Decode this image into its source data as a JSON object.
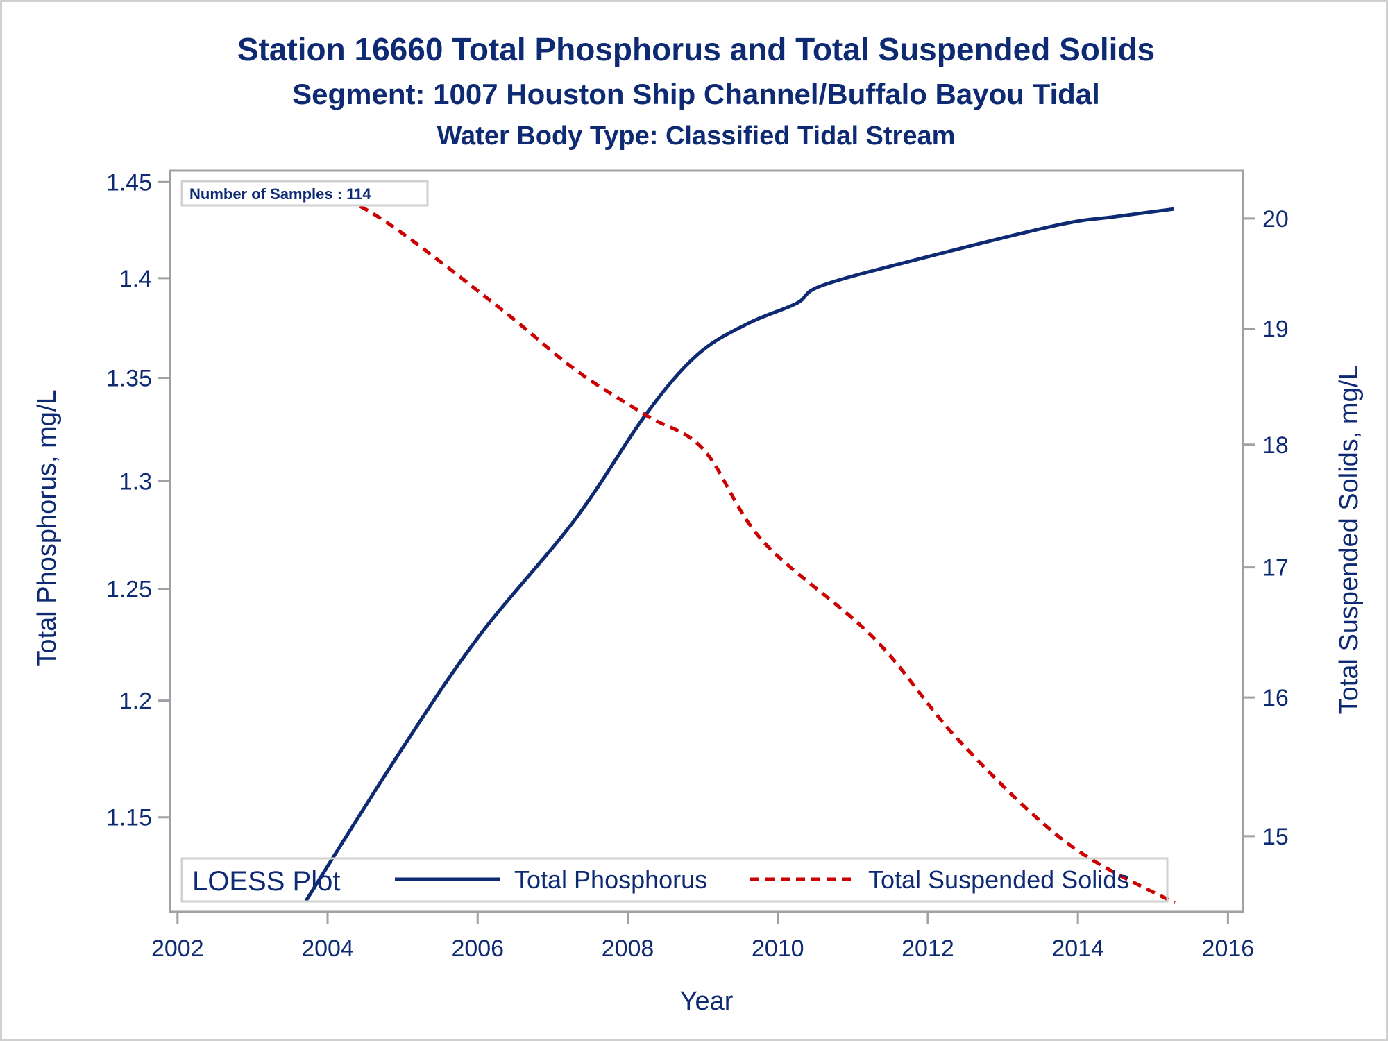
{
  "chart_data": {
    "type": "line",
    "title": "Station 16660  Total Phosphorus and Total Suspended Solids",
    "subtitle": "Segment: 1007  Houston Ship Channel/Buffalo Bayou Tidal",
    "subtitle2": "Water Body Type: Classified Tidal Stream",
    "xlabel": "Year",
    "ylabel": "Total Phosphorus, mg/L",
    "y2label": "Total Suspended Solids, mg/L",
    "xlim": [
      2001.9,
      2016.2
    ],
    "ylim": [
      1.111,
      1.456
    ],
    "y2lim": [
      14.48,
      20.45
    ],
    "yscale": "log",
    "y2scale": "log",
    "x_ticks": [
      "2002",
      "2004",
      "2006",
      "2008",
      "2010",
      "2012",
      "2014",
      "2016"
    ],
    "y_ticks": [
      "1.15",
      "1.2",
      "1.25",
      "1.3",
      "1.35",
      "1.4",
      "1.45"
    ],
    "y2_ticks": [
      "15",
      "16",
      "17",
      "18",
      "19",
      "20"
    ],
    "grid": false,
    "annotation": "Number of Samples : 114",
    "legend": {
      "title": "LOESS Plot",
      "placement": "bottom-inside",
      "entries": [
        "Total Phosphorus",
        "Total Suspended Solids"
      ]
    },
    "series": [
      {
        "name": "Total Phosphorus",
        "axis": "left",
        "color": "#0d2a73",
        "style": "solid",
        "x": [
          2003.71,
          2004.95,
          2006.01,
          2007.3,
          2008.24,
          2008.93,
          2009.6,
          2010.25,
          2010.6,
          2012.0,
          2013.74,
          2014.5,
          2015.28
        ],
        "y": [
          1.1154,
          1.177,
          1.2282,
          1.2821,
          1.332,
          1.3615,
          1.377,
          1.3872,
          1.3964,
          1.411,
          1.4275,
          1.4318,
          1.4358
        ]
      },
      {
        "name": "Total Suspended Solids",
        "axis": "right",
        "color": "#cc0000",
        "style": "dashed",
        "x": [
          2003.69,
          2004.71,
          2006.3,
          2007.3,
          2008.24,
          2009.01,
          2009.8,
          2011.28,
          2012.42,
          2013.86,
          2015.29
        ],
        "y": [
          20.35,
          20.0,
          19.18,
          18.64,
          18.25,
          17.96,
          17.21,
          16.45,
          15.68,
          14.95,
          14.54
        ]
      }
    ]
  }
}
